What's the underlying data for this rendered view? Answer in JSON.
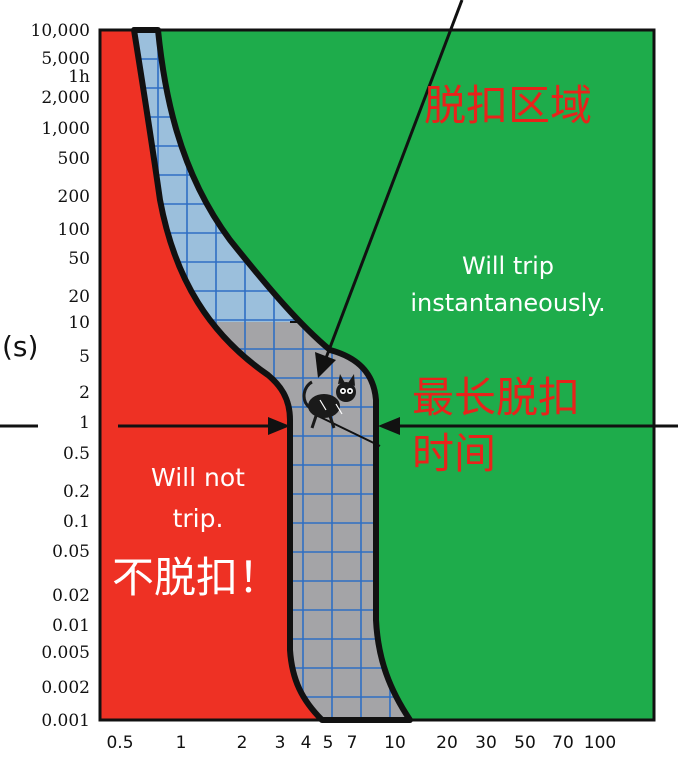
{
  "y_ticks": [
    "10,000",
    "5,000",
    "1h",
    "2,000",
    "1,000",
    "500",
    "200",
    "100",
    "50",
    "20",
    "10",
    "5",
    "2",
    "1",
    "0.5",
    "0.2",
    "0.1",
    "0.05",
    "0.02",
    "0.01",
    "0.005",
    "0.002",
    "0.001"
  ],
  "x_ticks": [
    "0.5",
    "1",
    "2",
    "3",
    "4",
    "5",
    "7",
    "10",
    "20",
    "30",
    "50",
    "70",
    "100"
  ],
  "y_unit": "(s)",
  "regions": {
    "trip_cn": "脱扣区域",
    "trip_en_line1": "Will trip",
    "trip_en_line2": "instantaneously.",
    "notrip_en_line1": "Will not",
    "notrip_en_line2": "trip.",
    "notrip_cn": "不脱扣！",
    "max_trip_line1": "最长脱扣",
    "max_trip_line2": "时间"
  },
  "colors": {
    "no_trip_region": "#ee3124",
    "trip_region": "#1eac4b",
    "tolerance_band_upper": "#9bbfdc",
    "tolerance_band_lower": "#a4a4a7",
    "grid_lines": "#2f6fc4",
    "outline": "#111111",
    "red_label": "#e8231b"
  },
  "icons": {
    "center_figure": "cartoon-cat-icon"
  }
}
